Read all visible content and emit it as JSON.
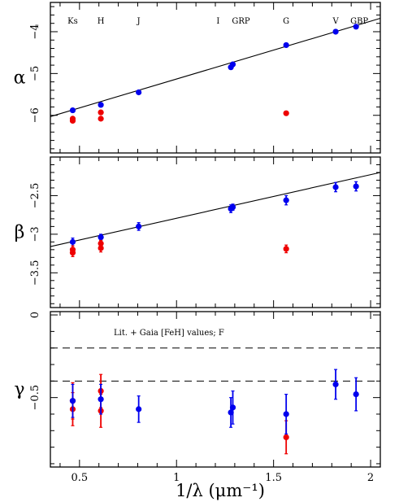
{
  "chart_data": {
    "type": "scatter",
    "x_axis": {
      "label": "1/λ (μm⁻¹)",
      "xlim": [
        0.35,
        2.05
      ],
      "ticks": [
        0.5,
        1,
        1.5,
        2
      ],
      "tick_labels": [
        "0.5",
        "1",
        "1.5",
        "2"
      ]
    },
    "bands": [
      {
        "name": "Ks",
        "x": 0.465
      },
      {
        "name": "H",
        "x": 0.61
      },
      {
        "name": "J",
        "x": 0.805
      },
      {
        "name": "I",
        "x": 1.235
      },
      {
        "name": "GRP",
        "x": 1.29
      },
      {
        "name": "G",
        "x": 1.565
      },
      {
        "name": "V",
        "x": 1.82
      },
      {
        "name": "GBP",
        "x": 1.925
      }
    ],
    "colors": {
      "blue": "#0000ee",
      "red": "#ee0000",
      "axis": "#000000"
    },
    "panels": [
      {
        "ylabel": "α",
        "ylim": [
          -6.9,
          -3.3
        ],
        "yticks": [
          -6,
          -5,
          -4
        ],
        "ytick_labels": [
          "−6",
          "−5",
          "−4"
        ],
        "fit_line": {
          "x": [
            0.35,
            2.05
          ],
          "y": [
            -6.03,
            -3.68
          ]
        },
        "series": [
          {
            "color": "blue",
            "points": [
              {
                "x": 0.465,
                "y": -5.88
              },
              {
                "x": 0.61,
                "y": -5.75
              },
              {
                "x": 0.805,
                "y": -5.45
              },
              {
                "x": 1.28,
                "y": -4.85
              },
              {
                "x": 1.29,
                "y": -4.78
              },
              {
                "x": 1.565,
                "y": -4.32
              },
              {
                "x": 1.82,
                "y": -4.0
              },
              {
                "x": 1.925,
                "y": -3.88
              }
            ]
          },
          {
            "color": "red",
            "points": [
              {
                "x": 0.465,
                "y": -6.13
              },
              {
                "x": 0.465,
                "y": -6.08
              },
              {
                "x": 0.61,
                "y": -6.08
              },
              {
                "x": 0.61,
                "y": -5.93
              },
              {
                "x": 1.565,
                "y": -5.95
              }
            ]
          }
        ]
      },
      {
        "ylabel": "β",
        "ylim": [
          -3.95,
          -2.0
        ],
        "yticks": [
          -3.5,
          -3,
          -2.5
        ],
        "ytick_labels": [
          "−3.5",
          "−3",
          "−2.5"
        ],
        "fit_line": {
          "x": [
            0.35,
            2.05
          ],
          "y": [
            -3.16,
            -2.2
          ]
        },
        "series": [
          {
            "color": "blue",
            "points": [
              {
                "x": 0.465,
                "y": -3.1,
                "err": 0.05
              },
              {
                "x": 0.61,
                "y": -3.04,
                "err": 0.04
              },
              {
                "x": 0.805,
                "y": -2.9,
                "err": 0.05
              },
              {
                "x": 1.28,
                "y": -2.67,
                "err": 0.05
              },
              {
                "x": 1.29,
                "y": -2.65,
                "err": 0.04
              },
              {
                "x": 1.565,
                "y": -2.56,
                "err": 0.06
              },
              {
                "x": 1.82,
                "y": -2.39,
                "err": 0.06
              },
              {
                "x": 1.925,
                "y": -2.38,
                "err": 0.06
              }
            ]
          },
          {
            "color": "red",
            "points": [
              {
                "x": 0.465,
                "y": -3.24,
                "err": 0.05
              },
              {
                "x": 0.465,
                "y": -3.2,
                "err": 0.05
              },
              {
                "x": 0.61,
                "y": -3.18,
                "err": 0.05
              },
              {
                "x": 0.61,
                "y": -3.12,
                "err": 0.04
              },
              {
                "x": 1.565,
                "y": -3.19,
                "err": 0.05
              }
            ]
          }
        ]
      },
      {
        "ylabel": "γ",
        "ylim": [
          -0.92,
          0.02
        ],
        "yticks": [
          -0.5,
          0
        ],
        "ytick_labels": [
          "−0.5",
          "0"
        ],
        "annotation": "Lit. + Gaia [FeH] values; F",
        "hlines": [
          -0.2,
          -0.4
        ],
        "series": [
          {
            "color": "red",
            "points": [
              {
                "x": 0.465,
                "y": -0.52,
                "err": 0.11
              },
              {
                "x": 0.465,
                "y": -0.57,
                "err": 0.1
              },
              {
                "x": 0.61,
                "y": -0.46,
                "err": 0.1
              },
              {
                "x": 0.61,
                "y": -0.58,
                "err": 0.1
              },
              {
                "x": 1.565,
                "y": -0.74,
                "err": 0.1
              }
            ]
          },
          {
            "color": "blue",
            "points": [
              {
                "x": 0.465,
                "y": -0.52,
                "err": 0.1
              },
              {
                "x": 0.61,
                "y": -0.51,
                "err": 0.09
              },
              {
                "x": 0.805,
                "y": -0.57,
                "err": 0.08
              },
              {
                "x": 1.28,
                "y": -0.59,
                "err": 0.09
              },
              {
                "x": 1.29,
                "y": -0.56,
                "err": 0.1
              },
              {
                "x": 1.565,
                "y": -0.6,
                "err": 0.12
              },
              {
                "x": 1.82,
                "y": -0.42,
                "err": 0.09
              },
              {
                "x": 1.925,
                "y": -0.48,
                "err": 0.1
              }
            ]
          }
        ]
      }
    ]
  }
}
